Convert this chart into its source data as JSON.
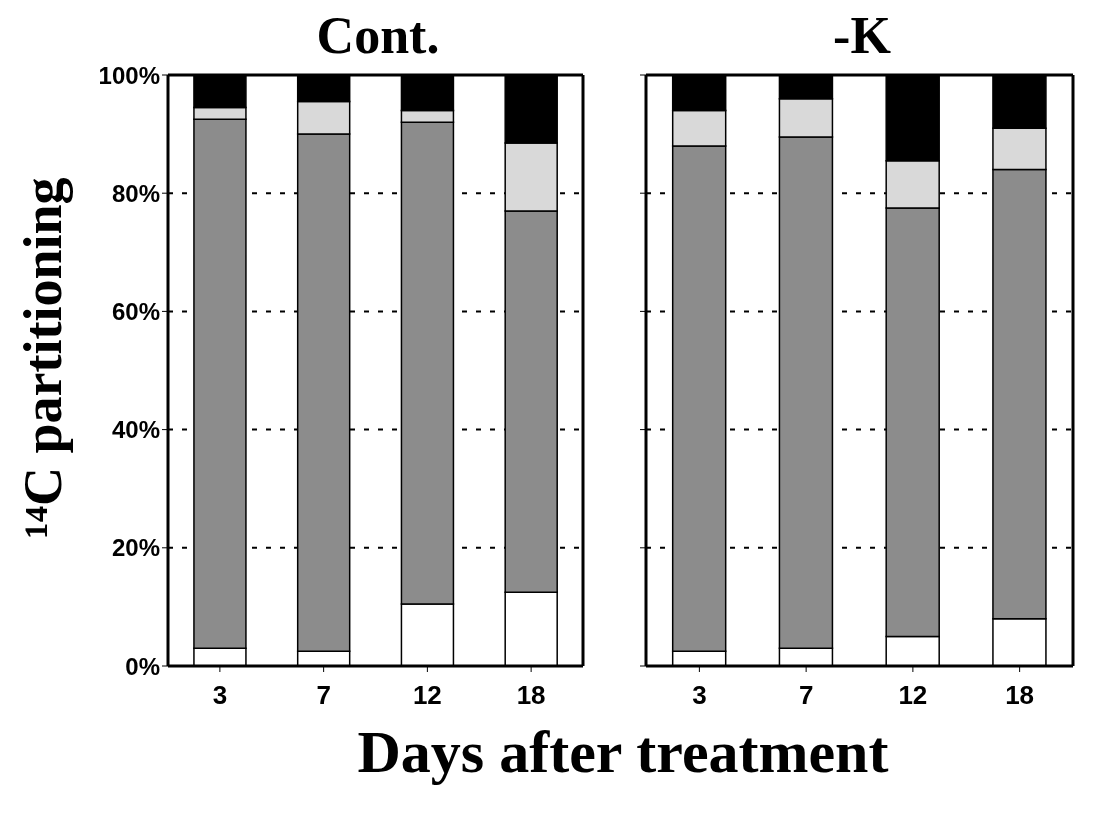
{
  "chart_data": [
    {
      "type": "bar",
      "title": "Cont.",
      "ylabel": "¹⁴C partitioning",
      "xlabel": "Days after treatment",
      "categories": [
        "3",
        "7",
        "12",
        "18"
      ],
      "stacked": true,
      "grid": "y",
      "ylim": [
        0,
        100
      ],
      "yticks": [
        {
          "value": 0,
          "label": "0%"
        },
        {
          "value": 20,
          "label": "20%"
        },
        {
          "value": 40,
          "label": "40%"
        },
        {
          "value": 60,
          "label": "60%"
        },
        {
          "value": 80,
          "label": "80%"
        },
        {
          "value": 100,
          "label": "100%"
        }
      ],
      "series": [
        {
          "color": "#ffffff",
          "values": [
            3,
            2.5,
            10.5,
            12.5
          ]
        },
        {
          "color": "#8c8c8c",
          "values": [
            89.5,
            87.5,
            81.5,
            64.5
          ]
        },
        {
          "color": "#d9d9d9",
          "values": [
            2,
            5.5,
            2,
            11.5
          ]
        },
        {
          "color": "#000000",
          "values": [
            5.5,
            4.5,
            6,
            11.5
          ]
        }
      ]
    },
    {
      "type": "bar",
      "title": "-K",
      "categories": [
        "3",
        "7",
        "12",
        "18"
      ],
      "stacked": true,
      "grid": "y",
      "tick_labels": "x",
      "ylim": [
        0,
        100
      ],
      "yticks": [
        0,
        20,
        40,
        60,
        80,
        100
      ],
      "series": [
        {
          "color": "#ffffff",
          "values": [
            2.5,
            3,
            5,
            8
          ]
        },
        {
          "color": "#8c8c8c",
          "values": [
            85.5,
            86.5,
            72.5,
            76
          ]
        },
        {
          "color": "#d9d9d9",
          "values": [
            6,
            6.5,
            8,
            7
          ]
        },
        {
          "color": "#000000",
          "values": [
            6,
            4,
            14.5,
            9
          ]
        }
      ]
    }
  ]
}
